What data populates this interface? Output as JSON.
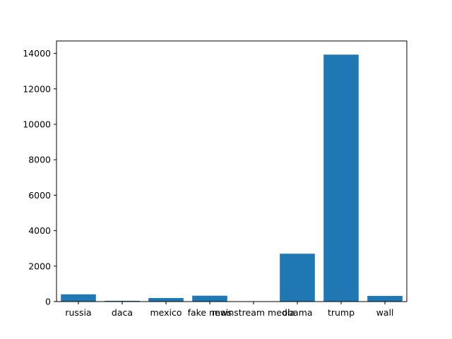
{
  "chart_data": {
    "type": "bar",
    "categories": [
      "russia",
      "daca",
      "mexico",
      "fake news",
      "mainstream media",
      "obama",
      "trump",
      "wall"
    ],
    "values": [
      410,
      45,
      200,
      330,
      5,
      2700,
      13930,
      320
    ],
    "ylim": [
      0,
      14700
    ],
    "yticks": [
      0,
      2000,
      4000,
      6000,
      8000,
      10000,
      12000,
      14000
    ],
    "title": "",
    "xlabel": "",
    "ylabel": "",
    "bar_color": "#1f77b4",
    "grid": false
  }
}
